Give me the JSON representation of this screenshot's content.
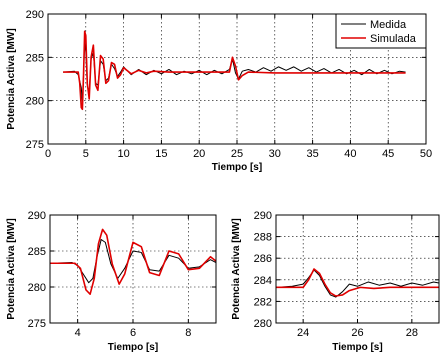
{
  "chart_data": [
    {
      "type": "line",
      "xlabel": "Tiempo [s]",
      "ylabel": "Potencia Activa [MW]",
      "xlim": [
        0,
        50
      ],
      "ylim": [
        275,
        290
      ],
      "xticks": [
        0,
        5,
        10,
        15,
        20,
        25,
        30,
        35,
        40,
        45,
        50
      ],
      "yticks": [
        275,
        280,
        285,
        290
      ],
      "grid": true,
      "legend": {
        "placement": "top-right",
        "entries": [
          "Medida",
          "Simulada"
        ]
      },
      "series": [
        {
          "name": "Medida",
          "color": "#000000",
          "points": [
            [
              2,
              283.3
            ],
            [
              3.5,
              283.4
            ],
            [
              4.0,
              283.0
            ],
            [
              4.4,
              281.5
            ],
            [
              4.55,
              279.8
            ],
            [
              4.7,
              283.0
            ],
            [
              4.85,
              286.8
            ],
            [
              5.0,
              285.6
            ],
            [
              5.2,
              281.8
            ],
            [
              5.45,
              281.0
            ],
            [
              5.7,
              284.8
            ],
            [
              6.0,
              285.5
            ],
            [
              6.3,
              282.0
            ],
            [
              6.6,
              281.8
            ],
            [
              6.95,
              284.6
            ],
            [
              7.3,
              284.2
            ],
            [
              7.65,
              282.3
            ],
            [
              8.0,
              282.6
            ],
            [
              8.4,
              284.2
            ],
            [
              8.8,
              283.7
            ],
            [
              9.2,
              282.8
            ],
            [
              9.6,
              283.3
            ],
            [
              10,
              283.9
            ],
            [
              11,
              283.0
            ],
            [
              12,
              283.6
            ],
            [
              13,
              283.0
            ],
            [
              14,
              283.5
            ],
            [
              15,
              283.1
            ],
            [
              16,
              283.6
            ],
            [
              17,
              283.0
            ],
            [
              18,
              283.4
            ],
            [
              19,
              283.1
            ],
            [
              20,
              283.5
            ],
            [
              21,
              283.0
            ],
            [
              22,
              283.5
            ],
            [
              23,
              283.1
            ],
            [
              24,
              283.6
            ],
            [
              24.4,
              284.8
            ],
            [
              24.8,
              283.2
            ],
            [
              25.2,
              282.5
            ],
            [
              25.7,
              283.4
            ],
            [
              26.5,
              283.6
            ],
            [
              27.5,
              283.3
            ],
            [
              28.5,
              283.8
            ],
            [
              29.5,
              283.4
            ],
            [
              30.5,
              283.9
            ],
            [
              31.5,
              283.5
            ],
            [
              32.5,
              283.9
            ],
            [
              33.5,
              283.4
            ],
            [
              34.5,
              283.8
            ],
            [
              35.5,
              283.3
            ],
            [
              36.5,
              283.7
            ],
            [
              37.5,
              283.2
            ],
            [
              38.5,
              283.6
            ],
            [
              39.5,
              283.1
            ],
            [
              40.5,
              283.5
            ],
            [
              41.5,
              283.0
            ],
            [
              42.5,
              283.6
            ],
            [
              43.5,
              283.1
            ],
            [
              44.5,
              283.5
            ],
            [
              45.5,
              283.1
            ],
            [
              46.5,
              283.4
            ],
            [
              47.3,
              283.3
            ]
          ]
        },
        {
          "name": "Simulada",
          "color": "#e00000",
          "points": [
            [
              2,
              283.3
            ],
            [
              4.0,
              283.3
            ],
            [
              4.2,
              282.0
            ],
            [
              4.4,
              279.2
            ],
            [
              4.55,
              279.0
            ],
            [
              4.7,
              283.0
            ],
            [
              4.85,
              288.0
            ],
            [
              5.0,
              287.5
            ],
            [
              5.2,
              282.0
            ],
            [
              5.45,
              280.2
            ],
            [
              5.7,
              285.0
            ],
            [
              6.0,
              286.4
            ],
            [
              6.3,
              281.8
            ],
            [
              6.6,
              281.2
            ],
            [
              6.95,
              285.2
            ],
            [
              7.3,
              284.8
            ],
            [
              7.65,
              282.0
            ],
            [
              8.0,
              282.3
            ],
            [
              8.4,
              284.4
            ],
            [
              8.8,
              284.2
            ],
            [
              9.2,
              282.6
            ],
            [
              9.6,
              283.0
            ],
            [
              10,
              283.8
            ],
            [
              11,
              283.1
            ],
            [
              12,
              283.5
            ],
            [
              13,
              283.2
            ],
            [
              14,
              283.4
            ],
            [
              16,
              283.3
            ],
            [
              24,
              283.3
            ],
            [
              24.4,
              285.0
            ],
            [
              24.8,
              284.0
            ],
            [
              25.2,
              282.4
            ],
            [
              25.7,
              282.9
            ],
            [
              26.5,
              283.3
            ],
            [
              30,
              283.2
            ],
            [
              47.3,
              283.2
            ]
          ]
        }
      ]
    },
    {
      "type": "line",
      "xlabel": "Tiempo [s]",
      "ylabel": "Potencia Activa [MW]",
      "xlim": [
        3,
        9
      ],
      "ylim": [
        275,
        290
      ],
      "xticks": [
        4,
        6,
        8
      ],
      "yticks": [
        275,
        280,
        285,
        290
      ],
      "grid": true,
      "series": [
        {
          "name": "Medida",
          "color": "#000000",
          "points": [
            [
              3,
              283.3
            ],
            [
              3.8,
              283.4
            ],
            [
              4.0,
              283.0
            ],
            [
              4.2,
              281.8
            ],
            [
              4.4,
              280.6
            ],
            [
              4.55,
              281.2
            ],
            [
              4.7,
              284.2
            ],
            [
              4.85,
              286.6
            ],
            [
              5.0,
              286.2
            ],
            [
              5.2,
              283.2
            ],
            [
              5.45,
              281.2
            ],
            [
              5.7,
              282.6
            ],
            [
              6.0,
              285.0
            ],
            [
              6.3,
              284.8
            ],
            [
              6.6,
              282.4
            ],
            [
              6.95,
              282.2
            ],
            [
              7.3,
              284.4
            ],
            [
              7.65,
              284.0
            ],
            [
              8.0,
              282.6
            ],
            [
              8.4,
              282.8
            ],
            [
              8.8,
              283.8
            ],
            [
              9,
              283.4
            ]
          ]
        },
        {
          "name": "Simulada",
          "color": "#e00000",
          "points": [
            [
              3,
              283.3
            ],
            [
              3.9,
              283.3
            ],
            [
              4.1,
              282.6
            ],
            [
              4.3,
              279.6
            ],
            [
              4.45,
              279.0
            ],
            [
              4.6,
              281.2
            ],
            [
              4.75,
              286.0
            ],
            [
              4.9,
              288.0
            ],
            [
              5.05,
              287.2
            ],
            [
              5.25,
              283.2
            ],
            [
              5.5,
              280.4
            ],
            [
              5.7,
              281.8
            ],
            [
              6.0,
              286.2
            ],
            [
              6.3,
              285.6
            ],
            [
              6.6,
              282.0
            ],
            [
              6.95,
              281.6
            ],
            [
              7.3,
              285.0
            ],
            [
              7.65,
              284.6
            ],
            [
              8.0,
              282.4
            ],
            [
              8.4,
              282.6
            ],
            [
              8.8,
              284.2
            ],
            [
              9,
              283.6
            ]
          ]
        }
      ]
    },
    {
      "type": "line",
      "xlabel": "Tiempo [s]",
      "ylabel": "Potencia Activa [MW]",
      "xlim": [
        23,
        29
      ],
      "ylim": [
        280,
        290
      ],
      "xticks": [
        24,
        26,
        28
      ],
      "yticks": [
        280,
        282,
        284,
        286,
        288,
        290
      ],
      "grid": true,
      "series": [
        {
          "name": "Medida",
          "color": "#000000",
          "points": [
            [
              23,
              283.3
            ],
            [
              23.6,
              283.4
            ],
            [
              24.0,
              283.6
            ],
            [
              24.2,
              284.2
            ],
            [
              24.4,
              284.9
            ],
            [
              24.6,
              284.4
            ],
            [
              24.8,
              283.4
            ],
            [
              25.0,
              282.6
            ],
            [
              25.2,
              282.4
            ],
            [
              25.45,
              282.9
            ],
            [
              25.7,
              283.6
            ],
            [
              26.0,
              283.4
            ],
            [
              26.4,
              283.8
            ],
            [
              26.8,
              283.5
            ],
            [
              27.2,
              283.7
            ],
            [
              27.6,
              283.4
            ],
            [
              28.0,
              283.7
            ],
            [
              28.4,
              283.5
            ],
            [
              28.8,
              283.8
            ],
            [
              29,
              283.7
            ]
          ]
        },
        {
          "name": "Simulada",
          "color": "#e00000",
          "points": [
            [
              23,
              283.3
            ],
            [
              24.0,
              283.3
            ],
            [
              24.2,
              284.0
            ],
            [
              24.4,
              285.0
            ],
            [
              24.6,
              284.6
            ],
            [
              24.8,
              283.6
            ],
            [
              25.0,
              282.8
            ],
            [
              25.2,
              282.5
            ],
            [
              25.45,
              282.6
            ],
            [
              25.7,
              283.0
            ],
            [
              26.1,
              283.3
            ],
            [
              26.6,
              283.2
            ],
            [
              27.2,
              283.3
            ],
            [
              29,
              283.3
            ]
          ]
        }
      ]
    }
  ]
}
